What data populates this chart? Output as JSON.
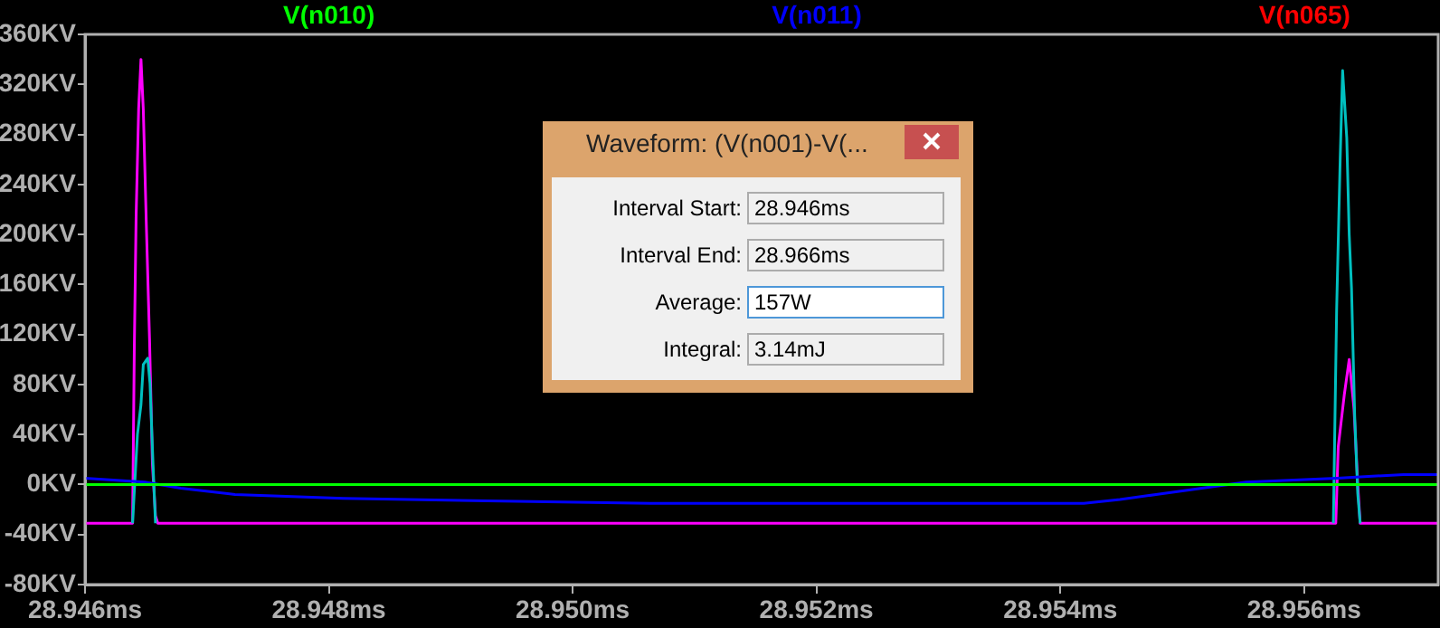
{
  "chart_data": {
    "type": "line",
    "xlim": [
      28.946,
      28.9571
    ],
    "xticks": [
      {
        "value": 28.946,
        "label": "28.946ms"
      },
      {
        "value": 28.948,
        "label": "28.948ms"
      },
      {
        "value": 28.95,
        "label": "28.950ms"
      },
      {
        "value": 28.952,
        "label": "28.952ms"
      },
      {
        "value": 28.954,
        "label": "28.954ms"
      },
      {
        "value": 28.956,
        "label": "28.956ms"
      }
    ],
    "ylim": [
      -80,
      360
    ],
    "yticks": [
      {
        "value": -80,
        "label": "-80KV"
      },
      {
        "value": -40,
        "label": "-40KV"
      },
      {
        "value": 0,
        "label": "0KV"
      },
      {
        "value": 40,
        "label": "40KV"
      },
      {
        "value": 80,
        "label": "80KV"
      },
      {
        "value": 120,
        "label": "120KV"
      },
      {
        "value": 160,
        "label": "160KV"
      },
      {
        "value": 200,
        "label": "200KV"
      },
      {
        "value": 240,
        "label": "240KV"
      },
      {
        "value": 280,
        "label": "280KV"
      },
      {
        "value": 320,
        "label": "320KV"
      },
      {
        "value": 360,
        "label": "360KV"
      }
    ],
    "grid": false,
    "legend": "top",
    "series": [
      {
        "name": "V(n010)",
        "color": "#00ff00",
        "x": [
          28.946,
          28.9571
        ],
        "values": [
          0,
          0
        ]
      },
      {
        "name": "V(n011)",
        "color": "#0000ff",
        "x": [
          28.946,
          28.946489,
          28.946785,
          28.94723,
          28.948119,
          28.949304,
          28.950637,
          28.954193,
          28.954489,
          28.954785,
          28.955526,
          28.956267,
          28.956815,
          28.9571
        ],
        "values": [
          5,
          2,
          -3,
          -8,
          -11,
          -13,
          -15,
          -15,
          -12,
          -8,
          2,
          5,
          8,
          8
        ]
      },
      {
        "name": "V(n065)",
        "color": "#ff0000"
      },
      {
        "color": "#00c0c0",
        "x": [
          28.94639,
          28.94643,
          28.946459,
          28.946478,
          28.946514,
          28.946533,
          28.946558,
          28.946578,
          28.951,
          28.95624,
          28.956267,
          28.956296,
          28.956316,
          28.95635,
          28.95637,
          28.956389,
          28.956415,
          28.95644,
          28.95646
        ],
        "values": [
          -31,
          40,
          64,
          96,
          101,
          81,
          16,
          -31,
          null,
          -31,
          140,
          260,
          331,
          277,
          200,
          157,
          55,
          -7,
          -31
        ]
      },
      {
        "color": "#ff00ff",
        "x": [
          28.946,
          28.94639,
          28.946404,
          28.946419,
          28.94644,
          28.946459,
          28.946478,
          28.946504,
          28.946529,
          28.946553,
          28.946578,
          28.946597,
          28.95626,
          28.95628,
          28.95633,
          28.95637,
          28.95641,
          28.95644,
          28.95646,
          28.9571
        ],
        "values": [
          -31,
          -31,
          106,
          214,
          301,
          340,
          300,
          204,
          117,
          16,
          -25,
          -31,
          -31,
          30,
          72,
          100,
          60,
          0,
          -31,
          -31
        ]
      }
    ],
    "annotations": [
      "Waveform: (V(n001)-V(...",
      "Interval Start:",
      "28.946ms",
      "Interval End:",
      "28.966ms",
      "Average:",
      "157W",
      "Integral:",
      "3.14mJ"
    ]
  }
}
